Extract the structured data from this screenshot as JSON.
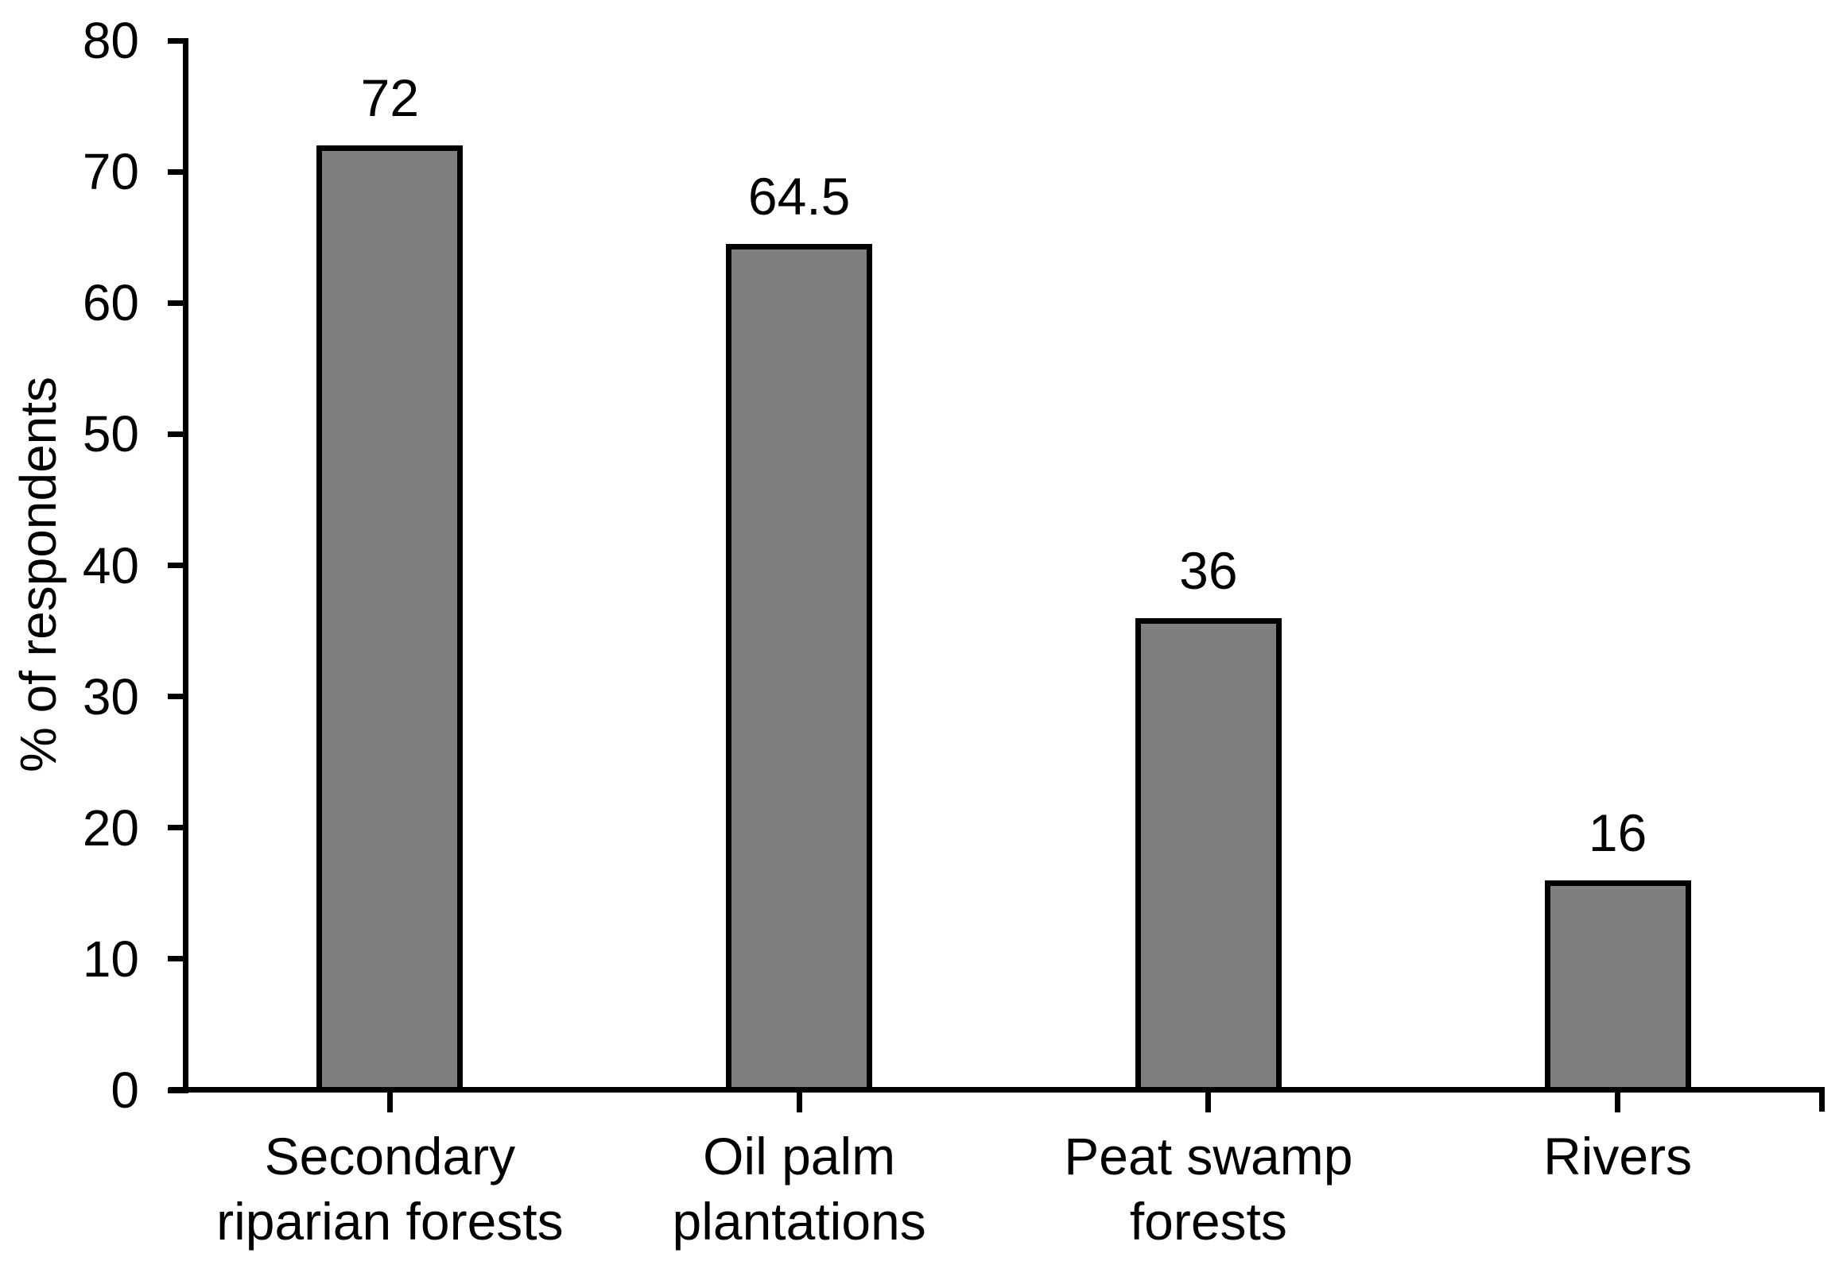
{
  "chart_data": {
    "type": "bar",
    "title": "",
    "xlabel": "",
    "ylabel": "% of respondents",
    "categories": [
      "Secondary riparian forests",
      "Oil palm plantations",
      "Peat swamp forests",
      "Rivers"
    ],
    "category_lines": [
      [
        "Secondary",
        "riparian forests"
      ],
      [
        "Oil palm",
        "plantations"
      ],
      [
        "Peat swamp",
        "forests"
      ],
      [
        "Rivers"
      ]
    ],
    "values": [
      72,
      64.5,
      36,
      16
    ],
    "value_labels": [
      "72",
      "64.5",
      "36",
      "16"
    ],
    "ylim": [
      0,
      80
    ],
    "yticks": [
      0,
      10,
      20,
      30,
      40,
      50,
      60,
      70,
      80
    ],
    "grid": false,
    "legend": "none",
    "colors": {
      "bar_fill": "#7f7f7f",
      "bar_border": "#000000",
      "axis": "#000000",
      "text": "#000000",
      "background": "#ffffff"
    }
  }
}
